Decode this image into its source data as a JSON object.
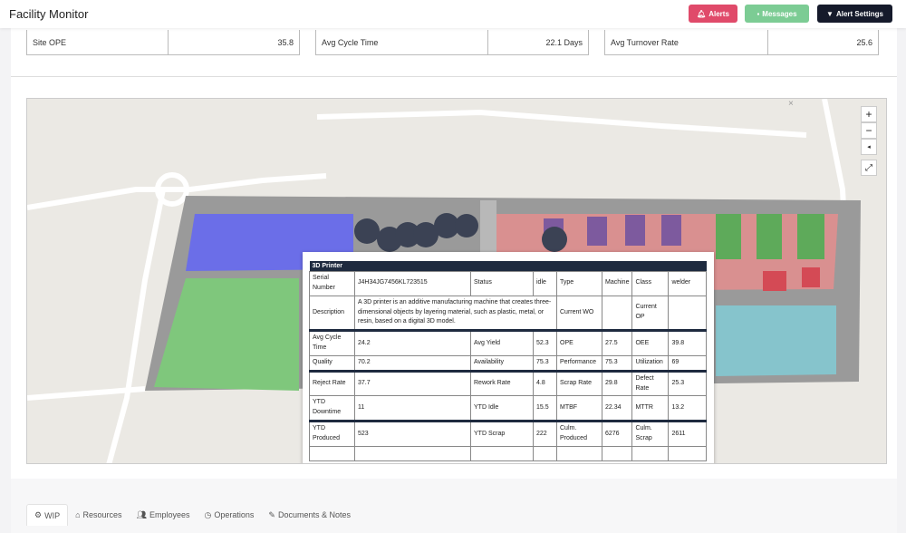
{
  "header": {
    "title": "Facility Monitor",
    "alerts": "Alerts",
    "messages": "Messages",
    "alert_settings": "Alert Settings",
    "colors": {
      "alerts": "#e04a6a",
      "messages": "#7ccc94",
      "alert_settings": "#151a2b"
    }
  },
  "metrics": [
    {
      "label": "Site OPE",
      "value": "35.8"
    },
    {
      "label": "Avg Cycle Time",
      "value": "22.1 Days"
    },
    {
      "label": "Avg Turnover Rate",
      "value": "25.6"
    }
  ],
  "map": {
    "zoom_in": "+",
    "zoom_out": "−",
    "close": "×",
    "popup": {
      "title": "3D Printer",
      "serial_label": "Serial Number",
      "serial": "J4H34JG7456KL723515",
      "status_label": "Status",
      "status": "idle",
      "type_label": "Type",
      "type": "Machine",
      "class_label": "Class",
      "class": "welder",
      "description_label": "Description",
      "description": "A 3D printer is an additive manufacturing machine that creates three-dimensional objects by layering material, such as plastic, metal, or resin, based on a digital 3D model.",
      "current_wo_label": "Current WO",
      "current_wo": "",
      "current_op_label": "Current OP",
      "current_op": "",
      "avg_cycle_label": "Avg Cycle Time",
      "avg_cycle": "24.2",
      "avg_yield_label": "Avg Yield",
      "avg_yield": "52.3",
      "ope_label": "OPE",
      "ope": "27.5",
      "oee_label": "OEE",
      "oee": "39.8",
      "quality_label": "Quality",
      "quality": "70.2",
      "availability_label": "Availability",
      "availability": "75.3",
      "performance_label": "Performance",
      "performance": "75.3",
      "utilization_label": "Utilization",
      "utilization": "69",
      "reject_label": "Reject Rate",
      "reject": "37.7",
      "rework_label": "Rework Rate",
      "rework": "4.8",
      "scrap_rate_label": "Scrap Rate",
      "scrap_rate": "29.8",
      "defect_label": "Defect Rate",
      "defect": "25.3",
      "ytd_down_label": "YTD Downtime",
      "ytd_down": "11",
      "ytd_idle_label": "YTD Idle",
      "ytd_idle": "15.5",
      "mtbf_label": "MTBF",
      "mtbf": "22.34",
      "mttr_label": "MTTR",
      "mttr": "13.2",
      "ytd_prod_label": "YTD Produced",
      "ytd_prod": "523",
      "ytd_scrap_label": "YTD Scrap",
      "ytd_scrap": "222",
      "culm_prod_label": "Culm. Produced",
      "culm_prod": "6276",
      "culm_scrap_label": "Culm. Scrap",
      "culm_scrap": "2611"
    }
  },
  "tabs": [
    {
      "label": "WIP",
      "icon": "gears-icon"
    },
    {
      "label": "Resources",
      "icon": "home-icon"
    },
    {
      "label": "Employees",
      "icon": "users-icon"
    },
    {
      "label": "Operations",
      "icon": "clock-icon"
    },
    {
      "label": "Documents & Notes",
      "icon": "edit-icon"
    }
  ]
}
